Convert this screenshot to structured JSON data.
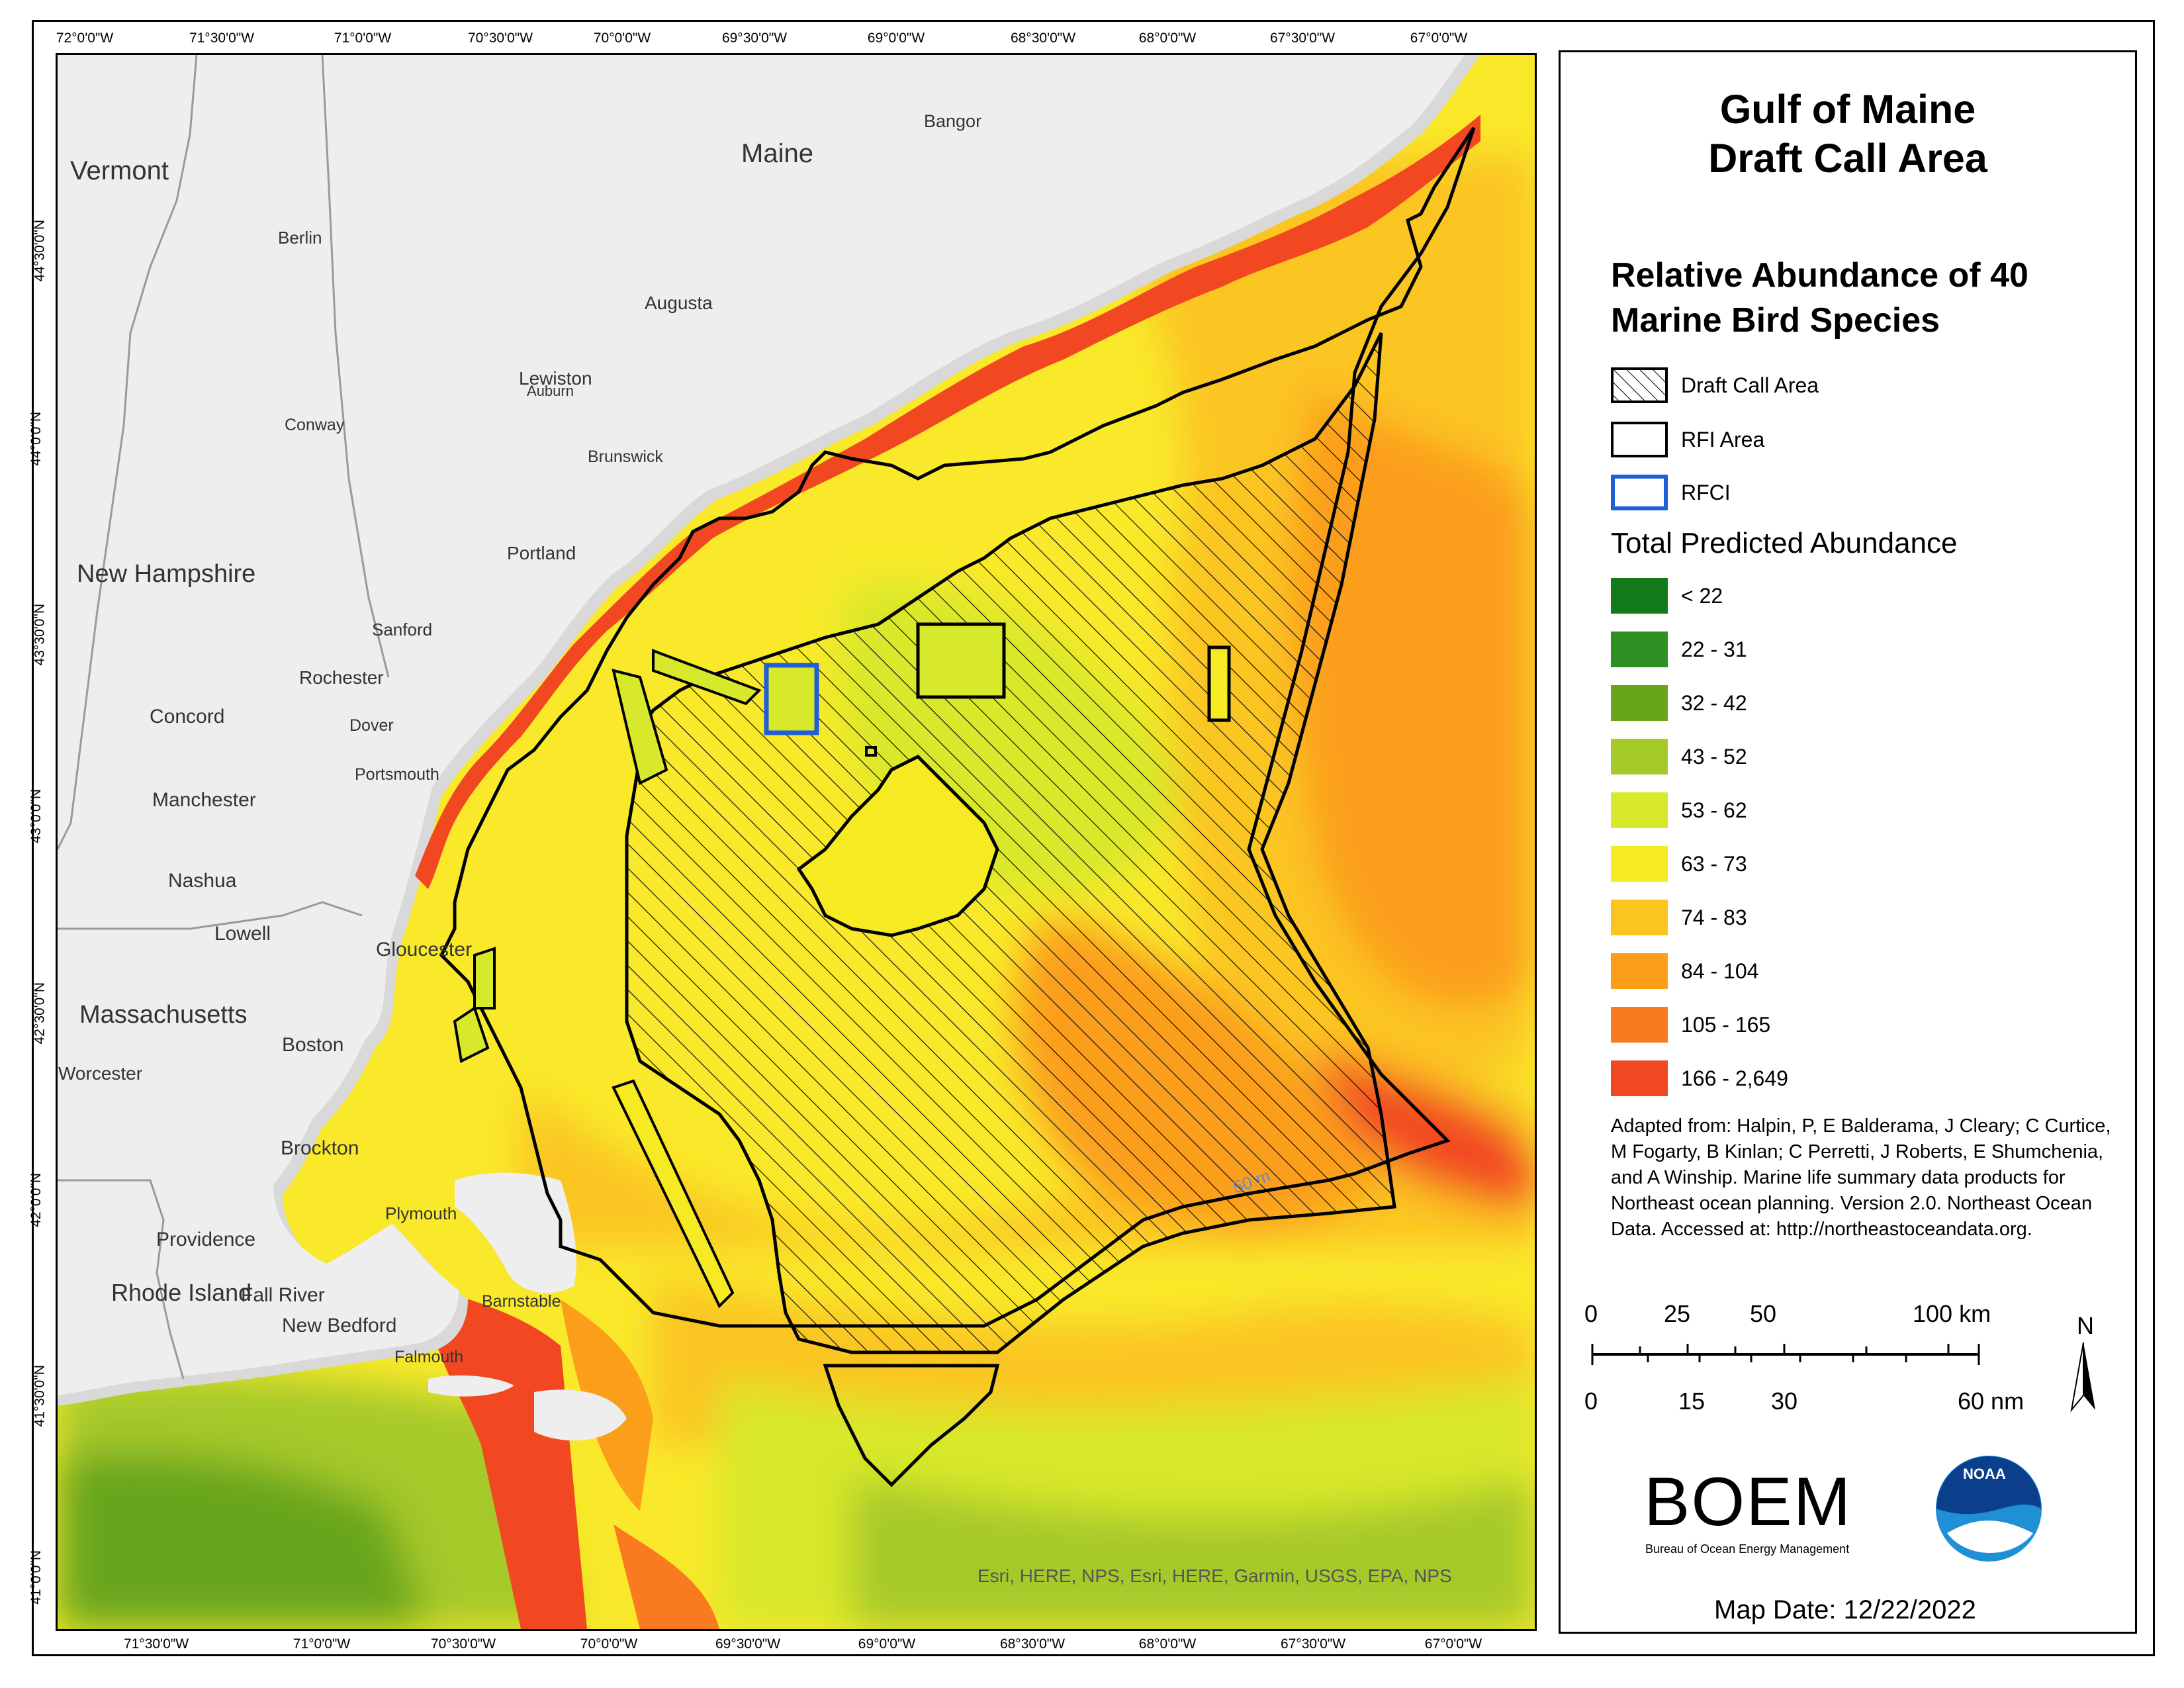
{
  "title": [
    "Gulf of Maine",
    "Draft Call Area"
  ],
  "subtitle": [
    "Relative Abundance of 40",
    "Marine Bird Species"
  ],
  "legend_shapes": [
    {
      "label": "Draft Call Area",
      "style": "hatched",
      "color": "#000000"
    },
    {
      "label": "RFI Area",
      "style": "outline",
      "color": "#000000"
    },
    {
      "label": "RFCI",
      "style": "outline",
      "color": "#1f5fd6"
    }
  ],
  "abundance_title": "Total Predicted Abundance",
  "abundance_classes": [
    {
      "label": "< 22",
      "color": "#137a1c"
    },
    {
      "label": "22 - 31",
      "color": "#2f8f22"
    },
    {
      "label": "32 - 42",
      "color": "#67a51b"
    },
    {
      "label": "43 - 52",
      "color": "#a6c92a"
    },
    {
      "label": "53 - 62",
      "color": "#d8e82a"
    },
    {
      "label": "63 - 73",
      "color": "#f6ea23"
    },
    {
      "label": "74 - 83",
      "color": "#fbc520"
    },
    {
      "label": "84 - 104",
      "color": "#fb9e1a"
    },
    {
      "label": "105 - 165",
      "color": "#f97a1f"
    },
    {
      "label": "166 - 2,649",
      "color": "#f24822"
    }
  ],
  "credit": "Adapted from: Halpin, P, E Balderama, J Cleary; C Curtice, M Fogarty, B Kinlan; C Perretti, J Roberts, E Shumchenia, and A Winship. Marine life summary data products for Northeast ocean planning. Version 2.0. Northeast Ocean Data. Accessed at: http://northeastoceandata.org.",
  "scale_km": [
    "0",
    "25",
    "50",
    "100 km"
  ],
  "scale_nm": [
    "0",
    "15",
    "30",
    "60 nm"
  ],
  "north_label": "N",
  "boem_logo": "BOEM",
  "boem_sub": "Bureau of Ocean Energy Management",
  "noaa_logo": "NOAA",
  "map_date": "Map Date: 12/22/2022",
  "attribution": "Esri, HERE, NPS, Esri, HERE, Garmin, USGS, EPA, NPS",
  "contour_label": "50 m",
  "ticks_top": [
    "72°0'0\"W",
    "71°30'0\"W",
    "71°0'0\"W",
    "70°30'0\"W",
    "70°0'0\"W",
    "69°30'0\"W",
    "69°0'0\"W",
    "68°30'0\"W",
    "68°0'0\"W",
    "67°30'0\"W",
    "67°0'0\"W"
  ],
  "ticks_bottom": [
    "71°30'0\"W",
    "71°0'0\"W",
    "70°30'0\"W",
    "70°0'0\"W",
    "69°30'0\"W",
    "69°0'0\"W",
    "68°30'0\"W",
    "68°0'0\"W",
    "67°30'0\"W",
    "67°0'0\"W"
  ],
  "ticks_side": [
    "44°30'0\"N",
    "44°0'0\"N",
    "43°30'0\"N",
    "43°0'0\"N",
    "42°30'0\"N",
    "42°0'0\"N",
    "41°30'0\"N",
    "41°0'0\"N"
  ],
  "places": {
    "states": [
      "Vermont",
      "Maine",
      "New Hampshire",
      "Massachusetts",
      "Rhode Island"
    ],
    "cities": [
      "Bangor",
      "Berlin",
      "Augusta",
      "Lewiston",
      "Auburn",
      "Conway",
      "Brunswick",
      "Portland",
      "Sanford",
      "Rochester",
      "Concord",
      "Dover",
      "Portsmouth",
      "Manchester",
      "Nashua",
      "Lowell",
      "Gloucester",
      "Boston",
      "Worcester",
      "Brockton",
      "Plymouth",
      "Providence",
      "Fall River",
      "New Bedford",
      "Barnstable",
      "Falmouth"
    ]
  }
}
